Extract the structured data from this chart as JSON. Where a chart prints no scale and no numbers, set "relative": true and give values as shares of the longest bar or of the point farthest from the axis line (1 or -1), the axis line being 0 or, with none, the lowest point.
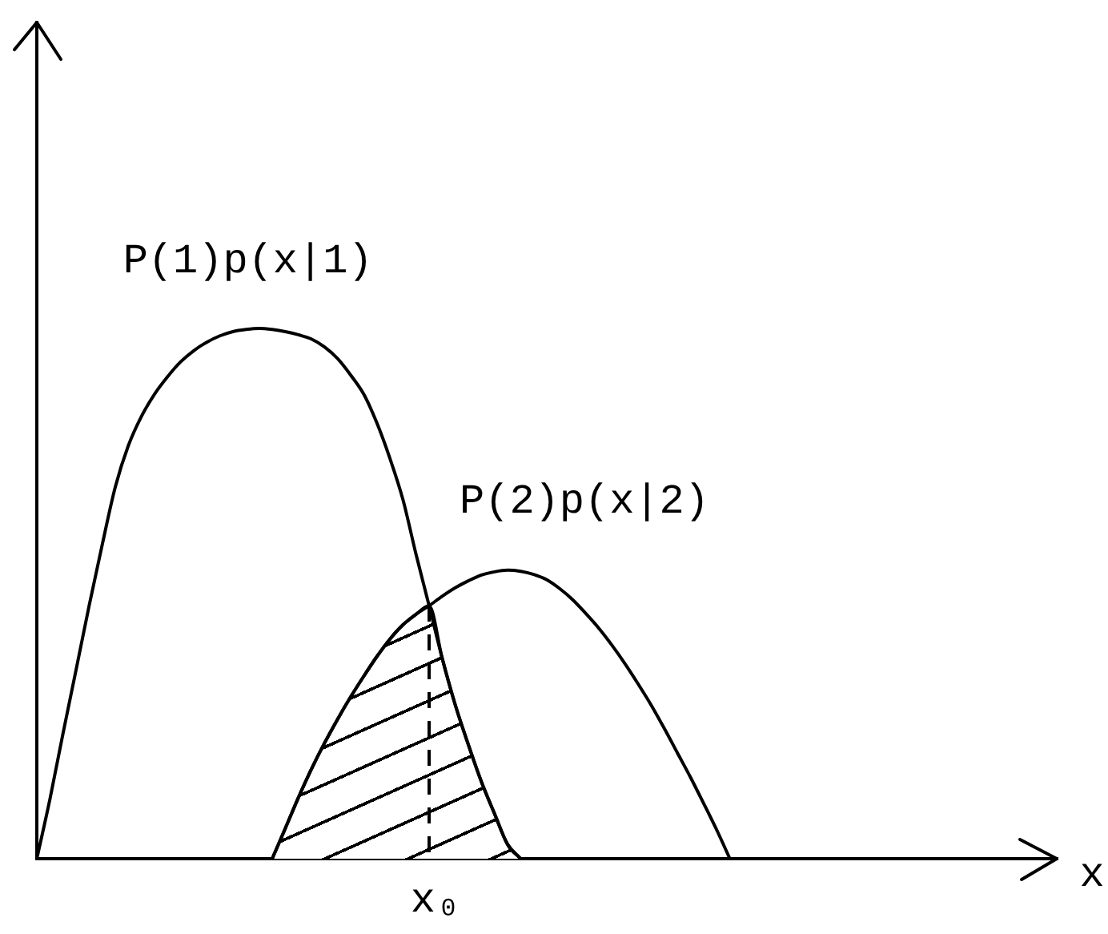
{
  "chart_data": {
    "type": "line",
    "relative": true,
    "xlabel": "x",
    "annotations": [
      "x₀"
    ],
    "categories": [
      null,
      null,
      null,
      null,
      null,
      null,
      null,
      null,
      null,
      null,
      null,
      null,
      null,
      null,
      null,
      null,
      null,
      null,
      null,
      null,
      null,
      null,
      null,
      null,
      null,
      null,
      null,
      null,
      null,
      null,
      null,
      null,
      null,
      null,
      null,
      null,
      null,
      null,
      null,
      null,
      null,
      null,
      null,
      null,
      null,
      null,
      null,
      null,
      null,
      null,
      null,
      null,
      null,
      null,
      null,
      null,
      null,
      null,
      null,
      null,
      null,
      null,
      null,
      null,
      null,
      null,
      null,
      null,
      null,
      null,
      null,
      null,
      null,
      null,
      null,
      null,
      null,
      null,
      null
    ],
    "series": [
      {
        "name": "P(1)p(x|1)",
        "color": "#000000",
        "values": [
          0,
          0.112,
          0.236,
          0.356,
          0.477,
          0.592,
          0.701,
          0.779,
          0.834,
          0.876,
          0.909,
          0.937,
          0.958,
          0.974,
          0.986,
          0.994,
          0.998,
          1,
          0.998,
          0.994,
          0.988,
          0.98,
          0.965,
          0.943,
          0.912,
          0.876,
          0.822,
          0.755,
          0.677,
          0.574,
          0.477,
          0.378,
          0.29,
          0.215,
          0.145,
          0.085,
          0.027,
          0,
          null,
          null,
          null,
          null,
          null,
          null,
          null,
          null,
          null,
          null,
          null,
          null,
          null,
          null,
          null,
          null,
          null,
          null,
          null,
          null,
          null,
          null,
          null,
          null,
          null,
          null,
          null,
          null,
          null,
          null,
          null,
          null,
          null,
          null,
          null,
          null,
          null,
          null,
          null,
          null,
          null
        ]
      },
      {
        "name": "P(2)p(x|2)",
        "color": "#000000",
        "values": [
          null,
          null,
          null,
          null,
          null,
          null,
          null,
          null,
          null,
          null,
          null,
          null,
          null,
          null,
          null,
          null,
          null,
          null,
          0,
          0.057,
          0.115,
          0.169,
          0.218,
          0.263,
          0.305,
          0.344,
          0.381,
          0.414,
          0.441,
          0.461,
          0.477,
          0.495,
          0.511,
          0.524,
          0.535,
          0.541,
          0.544,
          0.542,
          0.536,
          0.526,
          0.509,
          0.488,
          0.462,
          0.434,
          0.402,
          0.367,
          0.329,
          0.289,
          0.245,
          0.199,
          0.153,
          0.104,
          0.054,
          0,
          null,
          null,
          null,
          null,
          null,
          null,
          null,
          null,
          null,
          null,
          null,
          null,
          null,
          null,
          null,
          null,
          null,
          null,
          null,
          null,
          null,
          null,
          null,
          null,
          null
        ]
      },
      {
        "type": "area",
        "color": "#000000",
        "values": [
          null,
          null,
          null,
          null,
          null,
          null,
          null,
          null,
          null,
          null,
          null,
          null,
          null,
          null,
          null,
          null,
          null,
          null,
          0,
          0.057,
          0.115,
          0.169,
          0.218,
          0.263,
          0.305,
          0.344,
          0.381,
          0.414,
          0.441,
          0.461,
          0.477,
          0.378,
          0.29,
          0.215,
          0.145,
          0.085,
          0.027,
          0,
          null,
          null,
          null,
          null,
          null,
          null,
          null,
          null,
          null,
          null,
          null,
          null,
          null,
          null,
          null,
          null,
          null,
          null,
          null,
          null,
          null,
          null,
          null,
          null,
          null,
          null,
          null,
          null,
          null,
          null,
          null,
          null,
          null,
          null,
          null,
          null,
          null,
          null,
          null,
          null,
          null
        ]
      }
    ]
  }
}
